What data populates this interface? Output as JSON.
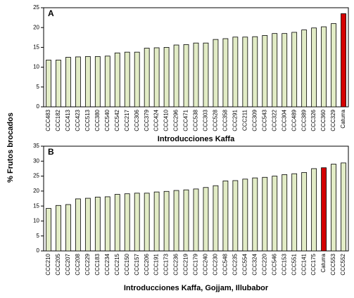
{
  "chart_data": [
    {
      "type": "bar",
      "panel_label": "A",
      "ylabel": "% Frutos brocados",
      "xlabel": "Introducciones Kaffa",
      "categories": [
        "CCC483",
        "CCC182",
        "CCC413",
        "CCC423",
        "CCC513",
        "CCC380",
        "CCC540",
        "CCC542",
        "CCC217",
        "CCC306",
        "CCC379",
        "CCC424",
        "CCC410",
        "CCC296",
        "CCC471",
        "CCC538",
        "CCC303",
        "CCC528",
        "CCC358",
        "CCC291",
        "CCC211",
        "CCC309",
        "CCC543",
        "CCC322",
        "CCC304",
        "CCC489",
        "CCC389",
        "CCC326",
        "CCC360",
        "CCC329",
        "Caturra"
      ],
      "values": [
        11.8,
        11.8,
        12.5,
        12.6,
        12.7,
        12.7,
        12.8,
        13.6,
        13.8,
        13.8,
        14.8,
        14.9,
        15.0,
        15.6,
        15.7,
        16.1,
        16.1,
        17.0,
        17.2,
        17.6,
        17.6,
        17.7,
        18.0,
        18.5,
        18.5,
        18.8,
        19.4,
        19.9,
        20.2,
        21.0,
        23.5
      ],
      "colors": [
        "#e2ecc6",
        "#e2ecc6",
        "#e2ecc6",
        "#e2ecc6",
        "#e2ecc6",
        "#e2ecc6",
        "#e2ecc6",
        "#e2ecc6",
        "#e2ecc6",
        "#e2ecc6",
        "#e2ecc6",
        "#e2ecc6",
        "#e2ecc6",
        "#e2ecc6",
        "#e2ecc6",
        "#e2ecc6",
        "#e2ecc6",
        "#e2ecc6",
        "#e2ecc6",
        "#e2ecc6",
        "#e2ecc6",
        "#e2ecc6",
        "#e2ecc6",
        "#e2ecc6",
        "#e2ecc6",
        "#e2ecc6",
        "#e2ecc6",
        "#e2ecc6",
        "#e2ecc6",
        "#e2ecc6",
        "#d40000"
      ],
      "ylim": [
        0,
        25
      ],
      "yticks": [
        0,
        5,
        10,
        15,
        20,
        25
      ]
    },
    {
      "type": "bar",
      "panel_label": "B",
      "xlabel": "Introducciones Kaffa, Gojjam, Illubabor",
      "categories": [
        "CCC210",
        "CCC205",
        "CCC207",
        "CCC208",
        "CCC229",
        "CCC183",
        "CCC234",
        "CCC215",
        "CCC150",
        "CCC157",
        "CCC206",
        "CCC191",
        "CCC173",
        "CCC236",
        "CCC219",
        "CCC179",
        "CCC240",
        "CCC230",
        "CCC548",
        "CCC235",
        "CCC554",
        "CCC324",
        "CCC220",
        "CCC546",
        "CCC153",
        "CCC551",
        "CCC141",
        "CCC175",
        "Caturra",
        "CCC553",
        "CCC552"
      ],
      "values": [
        14.2,
        15.2,
        15.5,
        17.4,
        17.6,
        18.0,
        18.1,
        18.9,
        19.1,
        19.3,
        19.3,
        19.7,
        19.9,
        20.2,
        20.4,
        20.7,
        21.2,
        21.8,
        23.4,
        23.5,
        24.0,
        24.4,
        24.6,
        25.0,
        25.5,
        25.8,
        26.2,
        27.5,
        27.8,
        29.0,
        29.4
      ],
      "colors": [
        "#e2ecc6",
        "#e2ecc6",
        "#e2ecc6",
        "#e2ecc6",
        "#e2ecc6",
        "#e2ecc6",
        "#e2ecc6",
        "#e2ecc6",
        "#e2ecc6",
        "#e2ecc6",
        "#e2ecc6",
        "#e2ecc6",
        "#e2ecc6",
        "#e2ecc6",
        "#e2ecc6",
        "#e2ecc6",
        "#e2ecc6",
        "#e2ecc6",
        "#e2ecc6",
        "#e2ecc6",
        "#e2ecc6",
        "#e2ecc6",
        "#e2ecc6",
        "#e2ecc6",
        "#e2ecc6",
        "#e2ecc6",
        "#e2ecc6",
        "#e2ecc6",
        "#d40000",
        "#e2ecc6",
        "#e2ecc6"
      ],
      "ylim": [
        0,
        35
      ],
      "yticks": [
        0,
        5,
        10,
        15,
        20,
        25,
        30,
        35
      ]
    }
  ]
}
